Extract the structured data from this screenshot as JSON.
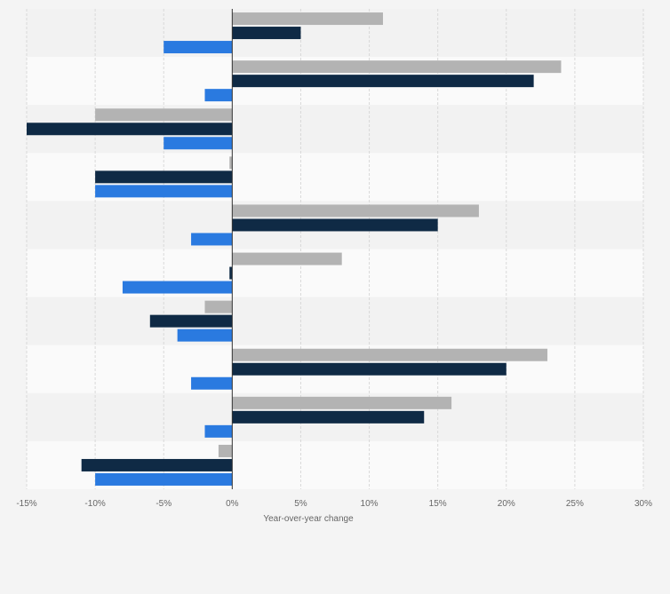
{
  "chart_data": {
    "type": "bar",
    "orientation": "horizontal",
    "title": "",
    "xlabel": "Year-over-year change",
    "ylabel": "",
    "xlim": [
      -15,
      30
    ],
    "x_ticks": [
      -15,
      -10,
      -5,
      0,
      5,
      10,
      15,
      20,
      25,
      30
    ],
    "x_tick_labels": [
      "-15%",
      "-10%",
      "-5%",
      "0%",
      "5%",
      "10%",
      "15%",
      "20%",
      "25%",
      "30%"
    ],
    "grid": true,
    "legend": "none",
    "categories": [
      "",
      "",
      "",
      "",
      "",
      "",
      "",
      "",
      "",
      ""
    ],
    "series": [
      {
        "color": "#b3b3b3",
        "values": [
          11,
          24,
          -10,
          -0.2,
          18,
          8,
          -2,
          23,
          16,
          -1
        ]
      },
      {
        "color": "#0f2a45",
        "values": [
          5,
          22,
          -15,
          -10,
          15,
          -0.2,
          -6,
          20,
          14,
          -11
        ]
      },
      {
        "color": "#2a7ae0",
        "values": [
          -5,
          -2,
          -5,
          -10,
          -3,
          -8,
          -4,
          -3,
          -2,
          -10
        ]
      }
    ]
  }
}
